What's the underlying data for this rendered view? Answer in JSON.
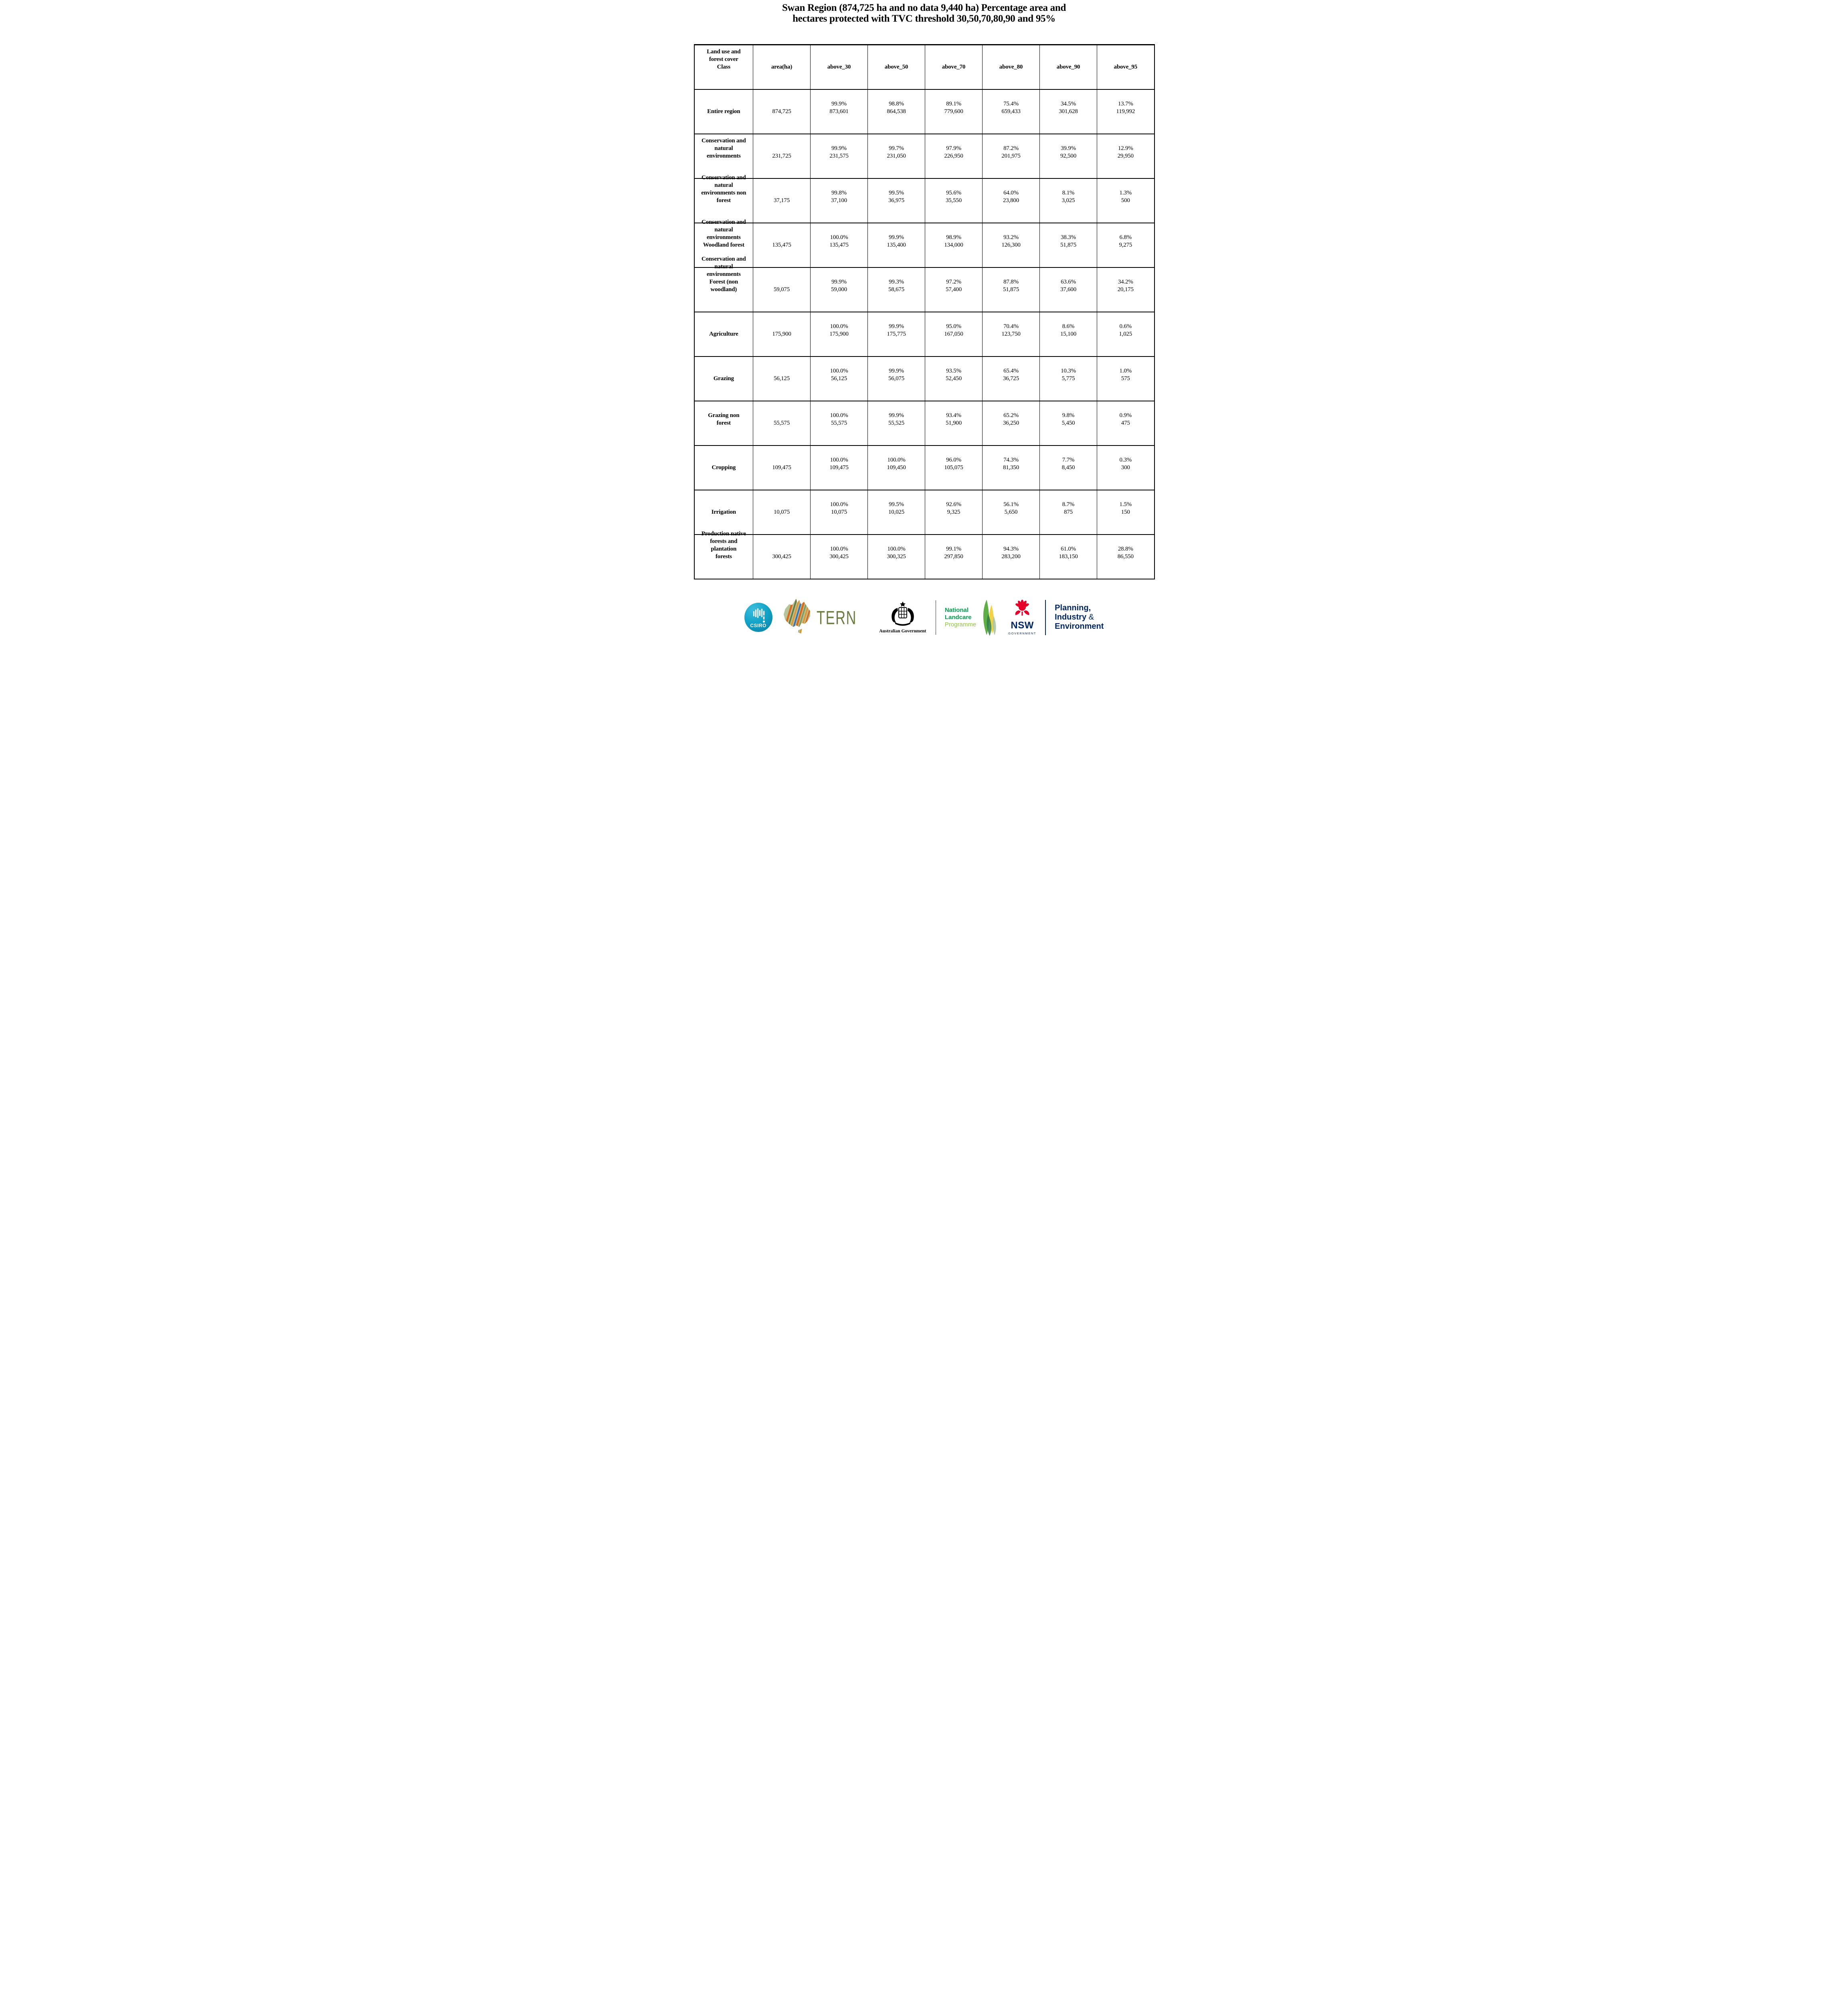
{
  "title": {
    "line1": "Swan Region (874,725 ha and no data 9,440 ha) Percentage area and",
    "line2": "hectares protected with TVC threshold 30,50,70,80,90 and 95%"
  },
  "table": {
    "columns": [
      {
        "lines": [
          "Land use and",
          "forest cover",
          "Class"
        ]
      },
      {
        "lines": [
          "area(ha)"
        ]
      },
      {
        "lines": [
          "above_30"
        ]
      },
      {
        "lines": [
          "above_50"
        ]
      },
      {
        "lines": [
          "above_70"
        ]
      },
      {
        "lines": [
          "above_80"
        ]
      },
      {
        "lines": [
          "above_90"
        ]
      },
      {
        "lines": [
          "above_95"
        ]
      }
    ],
    "rows": [
      {
        "label_lines": [
          "Entire region"
        ],
        "area": "874,725",
        "cells": [
          {
            "pct": "99.9%",
            "value": "873,601"
          },
          {
            "pct": "98.8%",
            "value": "864,538"
          },
          {
            "pct": "89.1%",
            "value": "779,600"
          },
          {
            "pct": "75.4%",
            "value": "659,433"
          },
          {
            "pct": "34.5%",
            "value": "301,628"
          },
          {
            "pct": "13.7%",
            "value": "119,992"
          }
        ]
      },
      {
        "label_lines": [
          "Conservation and",
          "natural",
          "environments"
        ],
        "area": "231,725",
        "cells": [
          {
            "pct": "99.9%",
            "value": "231,575"
          },
          {
            "pct": "99.7%",
            "value": "231,050"
          },
          {
            "pct": "97.9%",
            "value": "226,950"
          },
          {
            "pct": "87.2%",
            "value": "201,975"
          },
          {
            "pct": "39.9%",
            "value": "92,500"
          },
          {
            "pct": "12.9%",
            "value": "29,950"
          }
        ]
      },
      {
        "label_lines": [
          "Conservation and",
          "natural",
          "environments non",
          "forest"
        ],
        "area": "37,175",
        "cells": [
          {
            "pct": "99.8%",
            "value": "37,100"
          },
          {
            "pct": "99.5%",
            "value": "36,975"
          },
          {
            "pct": "95.6%",
            "value": "35,550"
          },
          {
            "pct": "64.0%",
            "value": "23,800"
          },
          {
            "pct": "8.1%",
            "value": "3,025"
          },
          {
            "pct": "1.3%",
            "value": "500"
          }
        ]
      },
      {
        "label_lines": [
          "Conservation and",
          "natural",
          "environments",
          "Woodland forest"
        ],
        "area": "135,475",
        "cells": [
          {
            "pct": "100.0%",
            "value": "135,475"
          },
          {
            "pct": "99.9%",
            "value": "135,400"
          },
          {
            "pct": "98.9%",
            "value": "134,000"
          },
          {
            "pct": "93.2%",
            "value": "126,300"
          },
          {
            "pct": "38.3%",
            "value": "51,875"
          },
          {
            "pct": "6.8%",
            "value": "9,275"
          }
        ]
      },
      {
        "label_lines": [
          "Conservation and",
          "natural",
          "environments",
          "Forest (non",
          "woodland)"
        ],
        "area": "59,075",
        "cells": [
          {
            "pct": "99.9%",
            "value": "59,000"
          },
          {
            "pct": "99.3%",
            "value": "58,675"
          },
          {
            "pct": "97.2%",
            "value": "57,400"
          },
          {
            "pct": "87.8%",
            "value": "51,875"
          },
          {
            "pct": "63.6%",
            "value": "37,600"
          },
          {
            "pct": "34.2%",
            "value": "20,175"
          }
        ]
      },
      {
        "label_lines": [
          "Agriculture"
        ],
        "area": "175,900",
        "cells": [
          {
            "pct": "100.0%",
            "value": "175,900"
          },
          {
            "pct": "99.9%",
            "value": "175,775"
          },
          {
            "pct": "95.0%",
            "value": "167,050"
          },
          {
            "pct": "70.4%",
            "value": "123,750"
          },
          {
            "pct": "8.6%",
            "value": "15,100"
          },
          {
            "pct": "0.6%",
            "value": "1,025"
          }
        ]
      },
      {
        "label_lines": [
          "Grazing"
        ],
        "area": "56,125",
        "cells": [
          {
            "pct": "100.0%",
            "value": "56,125"
          },
          {
            "pct": "99.9%",
            "value": "56,075"
          },
          {
            "pct": "93.5%",
            "value": "52,450"
          },
          {
            "pct": "65.4%",
            "value": "36,725"
          },
          {
            "pct": "10.3%",
            "value": "5,775"
          },
          {
            "pct": "1.0%",
            "value": "575"
          }
        ]
      },
      {
        "label_lines": [
          "Grazing non",
          "forest"
        ],
        "area": "55,575",
        "cells": [
          {
            "pct": "100.0%",
            "value": "55,575"
          },
          {
            "pct": "99.9%",
            "value": "55,525"
          },
          {
            "pct": "93.4%",
            "value": "51,900"
          },
          {
            "pct": "65.2%",
            "value": "36,250"
          },
          {
            "pct": "9.8%",
            "value": "5,450"
          },
          {
            "pct": "0.9%",
            "value": "475"
          }
        ]
      },
      {
        "label_lines": [
          "Cropping"
        ],
        "area": "109,475",
        "cells": [
          {
            "pct": "100.0%",
            "value": "109,475"
          },
          {
            "pct": "100.0%",
            "value": "109,450"
          },
          {
            "pct": "96.0%",
            "value": "105,075"
          },
          {
            "pct": "74.3%",
            "value": "81,350"
          },
          {
            "pct": "7.7%",
            "value": "8,450"
          },
          {
            "pct": "0.3%",
            "value": "300"
          }
        ]
      },
      {
        "label_lines": [
          "Irrigation"
        ],
        "area": "10,075",
        "cells": [
          {
            "pct": "100.0%",
            "value": "10,075"
          },
          {
            "pct": "99.5%",
            "value": "10,025"
          },
          {
            "pct": "92.6%",
            "value": "9,325"
          },
          {
            "pct": "56.1%",
            "value": "5,650"
          },
          {
            "pct": "8.7%",
            "value": "875"
          },
          {
            "pct": "1.5%",
            "value": "150"
          }
        ]
      },
      {
        "label_lines": [
          "Production native",
          "forests and",
          "plantation",
          "forests"
        ],
        "area": "300,425",
        "cells": [
          {
            "pct": "100.0%",
            "value": "300,425"
          },
          {
            "pct": "100.0%",
            "value": "300,325"
          },
          {
            "pct": "99.1%",
            "value": "297,850"
          },
          {
            "pct": "94.3%",
            "value": "283,200"
          },
          {
            "pct": "61.0%",
            "value": "183,150"
          },
          {
            "pct": "28.8%",
            "value": "86,550"
          }
        ]
      }
    ]
  },
  "logos": {
    "csiro": {
      "label": "CSIRO"
    },
    "tern": {
      "label": "TERN"
    },
    "australian_government": {
      "label": "Australian Government"
    },
    "landcare": {
      "line1": "National",
      "line2": "Landcare",
      "line3": "Programme"
    },
    "nsw": {
      "label": "NSW",
      "sub": "GOVERNMENT"
    },
    "planning": {
      "line1": "Planning,",
      "line2_prefix": "Industry ",
      "line2_amp": "&",
      "line3": "Environment"
    }
  },
  "colors": {
    "csiro_teal": "#12a3c6",
    "tern_olive": "#6d7c42",
    "landcare_green": "#00A14B",
    "landcare_light_green": "#8CC63F",
    "nsw_red": "#E4002B",
    "nsw_navy": "#002664"
  }
}
